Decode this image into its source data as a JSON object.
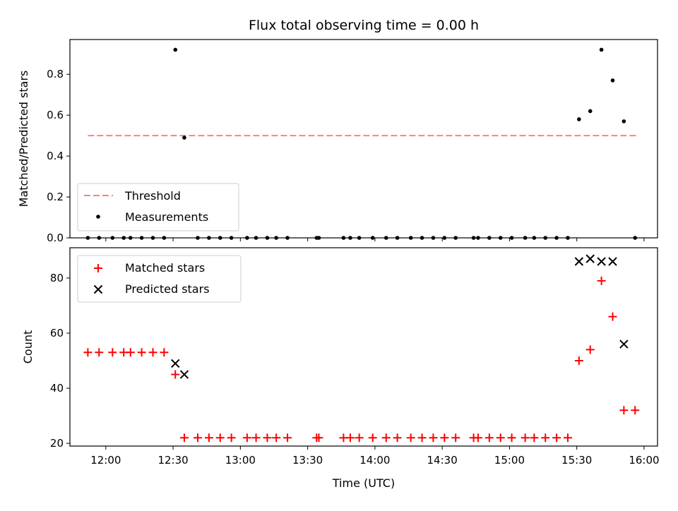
{
  "title": "Flux total observing time = 0.00 h",
  "colors": {
    "threshold": "#ff7f7f",
    "measurements": "#000000",
    "matched": "#ff0000",
    "predicted": "#000000"
  },
  "chart_data": [
    {
      "type": "scatter",
      "title": "Flux total observing time = 0.00 h",
      "ylabel": "Matched/Predicted stars",
      "xlabel": "",
      "xlim": [
        "11:44",
        "16:06"
      ],
      "ylim": [
        0,
        0.97
      ],
      "x_ticks": [
        "12:00",
        "12:30",
        "13:00",
        "13:30",
        "14:00",
        "14:30",
        "15:00",
        "15:30",
        "16:00"
      ],
      "y_ticks": [
        "0.0",
        "0.2",
        "0.4",
        "0.6",
        "0.8"
      ],
      "legend_position": "lower-left",
      "threshold": {
        "name": "Threshold",
        "x": [
          "11:52",
          "15:57"
        ],
        "y": 0.5,
        "style": "dashed"
      },
      "series": [
        {
          "name": "Measurements",
          "marker": "dot",
          "points": [
            [
              "11:52",
              0
            ],
            [
              "11:57",
              0
            ],
            [
              "12:03",
              0
            ],
            [
              "12:08",
              0
            ],
            [
              "12:11",
              0
            ],
            [
              "12:16",
              0
            ],
            [
              "12:21",
              0
            ],
            [
              "12:26",
              0
            ],
            [
              "12:31",
              0.92
            ],
            [
              "12:35",
              0.49
            ],
            [
              "12:41",
              0
            ],
            [
              "12:46",
              0
            ],
            [
              "12:51",
              0
            ],
            [
              "12:56",
              0
            ],
            [
              "13:03",
              0
            ],
            [
              "13:07",
              0
            ],
            [
              "13:12",
              0
            ],
            [
              "13:16",
              0
            ],
            [
              "13:21",
              0
            ],
            [
              "13:34",
              0
            ],
            [
              "13:35",
              0
            ],
            [
              "13:46",
              0
            ],
            [
              "13:49",
              0
            ],
            [
              "13:53",
              0
            ],
            [
              "13:59",
              0
            ],
            [
              "14:05",
              0
            ],
            [
              "14:10",
              0
            ],
            [
              "14:16",
              0
            ],
            [
              "14:21",
              0
            ],
            [
              "14:26",
              0
            ],
            [
              "14:31",
              0
            ],
            [
              "14:36",
              0
            ],
            [
              "14:44",
              0
            ],
            [
              "14:46",
              0
            ],
            [
              "14:51",
              0
            ],
            [
              "14:56",
              0
            ],
            [
              "15:01",
              0
            ],
            [
              "15:07",
              0
            ],
            [
              "15:11",
              0
            ],
            [
              "15:16",
              0
            ],
            [
              "15:21",
              0
            ],
            [
              "15:26",
              0
            ],
            [
              "15:31",
              0.58
            ],
            [
              "15:36",
              0.62
            ],
            [
              "15:41",
              0.92
            ],
            [
              "15:46",
              0.77
            ],
            [
              "15:51",
              0.57
            ],
            [
              "15:56",
              0
            ]
          ]
        }
      ]
    },
    {
      "type": "scatter",
      "title": "",
      "ylabel": "Count",
      "xlabel": "Time (UTC)",
      "xlim": [
        "11:44",
        "16:06"
      ],
      "ylim": [
        19,
        91
      ],
      "x_ticks": [
        "12:00",
        "12:30",
        "13:00",
        "13:30",
        "14:00",
        "14:30",
        "15:00",
        "15:30",
        "16:00"
      ],
      "y_ticks": [
        "20",
        "40",
        "60",
        "80"
      ],
      "legend_position": "top-left",
      "series": [
        {
          "name": "Matched stars",
          "marker": "plus",
          "points": [
            [
              "11:52",
              53
            ],
            [
              "11:57",
              53
            ],
            [
              "12:03",
              53
            ],
            [
              "12:08",
              53
            ],
            [
              "12:11",
              53
            ],
            [
              "12:16",
              53
            ],
            [
              "12:21",
              53
            ],
            [
              "12:26",
              53
            ],
            [
              "12:31",
              45
            ],
            [
              "12:35",
              22
            ],
            [
              "12:41",
              22
            ],
            [
              "12:46",
              22
            ],
            [
              "12:51",
              22
            ],
            [
              "12:56",
              22
            ],
            [
              "13:03",
              22
            ],
            [
              "13:07",
              22
            ],
            [
              "13:12",
              22
            ],
            [
              "13:16",
              22
            ],
            [
              "13:21",
              22
            ],
            [
              "13:34",
              22
            ],
            [
              "13:35",
              22
            ],
            [
              "13:46",
              22
            ],
            [
              "13:49",
              22
            ],
            [
              "13:53",
              22
            ],
            [
              "13:59",
              22
            ],
            [
              "14:05",
              22
            ],
            [
              "14:10",
              22
            ],
            [
              "14:16",
              22
            ],
            [
              "14:21",
              22
            ],
            [
              "14:26",
              22
            ],
            [
              "14:31",
              22
            ],
            [
              "14:36",
              22
            ],
            [
              "14:44",
              22
            ],
            [
              "14:46",
              22
            ],
            [
              "14:51",
              22
            ],
            [
              "14:56",
              22
            ],
            [
              "15:01",
              22
            ],
            [
              "15:07",
              22
            ],
            [
              "15:11",
              22
            ],
            [
              "15:16",
              22
            ],
            [
              "15:21",
              22
            ],
            [
              "15:26",
              22
            ],
            [
              "15:31",
              50
            ],
            [
              "15:36",
              54
            ],
            [
              "15:41",
              79
            ],
            [
              "15:46",
              66
            ],
            [
              "15:51",
              32
            ],
            [
              "15:56",
              32
            ]
          ]
        },
        {
          "name": "Predicted stars",
          "marker": "x",
          "points": [
            [
              "12:31",
              49
            ],
            [
              "12:35",
              45
            ],
            [
              "15:31",
              86
            ],
            [
              "15:36",
              87
            ],
            [
              "15:41",
              86
            ],
            [
              "15:46",
              86
            ],
            [
              "15:51",
              56
            ]
          ]
        }
      ]
    }
  ]
}
